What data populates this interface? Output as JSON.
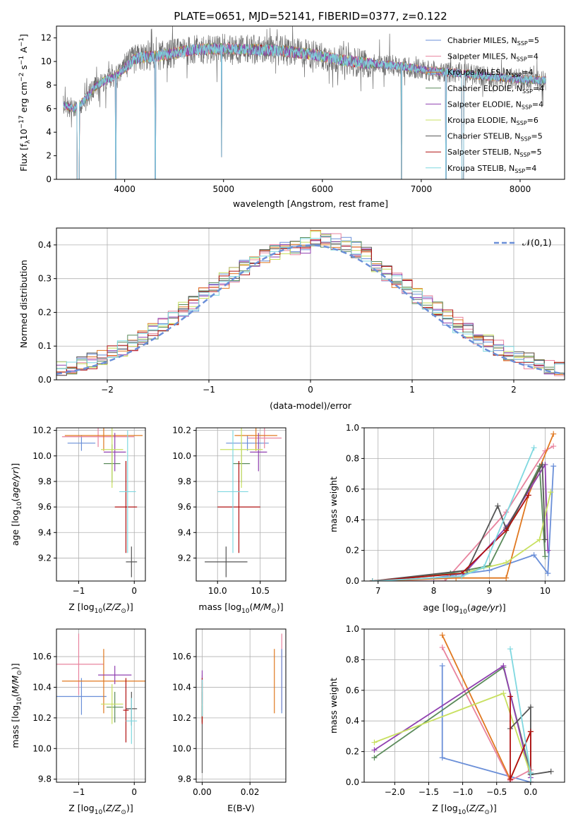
{
  "title": "PLATE=0651, MJD=52141, FIBERID=0377, z=0.122",
  "colors": [
    "#6a8fd8",
    "#e8839e",
    "#e07820",
    "#5a8a5a",
    "#9040b0",
    "#c8e060",
    "#555555",
    "#b01010",
    "#7fd8e0"
  ],
  "chart_data": [
    {
      "type": "line",
      "id": "spectrum",
      "title": "PLATE=0651, MJD=52141, FIBERID=0377, z=0.122",
      "xlabel": "wavelength [Angstrom, rest frame]",
      "ylabel": "Flux [f_λ10^-17 erg cm^-2 s^-1 A^-1]",
      "ylabel_parts": [
        "Flux [f",
        "λ",
        "10",
        "−17",
        " erg cm",
        "−2",
        " s",
        "−1",
        " A",
        "−1",
        "]"
      ],
      "xlim": [
        3310,
        8450
      ],
      "ylim": [
        0,
        13
      ],
      "xticks": [
        4000,
        5000,
        6000,
        7000,
        8000
      ],
      "yticks": [
        0,
        2,
        4,
        6,
        8,
        10,
        12
      ],
      "grid": false,
      "legend_position": "top-right",
      "legend": [
        {
          "text": "Chabrier MILES, N",
          "sub": "SSP",
          "suffix": "=5"
        },
        {
          "text": "Salpeter MILES, N",
          "sub": "SSP",
          "suffix": "=4"
        },
        {
          "text": "Kroupa MILES, N",
          "sub": "SSP",
          "suffix": "=4"
        },
        {
          "text": "Chabrier ELODIE, N",
          "sub": "SSP",
          "suffix": "=4"
        },
        {
          "text": "Salpeter ELODIE, N",
          "sub": "SSP",
          "suffix": "=4"
        },
        {
          "text": "Kroupa ELODIE, N",
          "sub": "SSP",
          "suffix": "=6"
        },
        {
          "text": "Chabrier STELIB, N",
          "sub": "SSP",
          "suffix": "=5"
        },
        {
          "text": "Salpeter STELIB, N",
          "sub": "SSP",
          "suffix": "=5"
        },
        {
          "text": "Kroupa STELIB, N",
          "sub": "SSP",
          "suffix": "=4"
        }
      ],
      "continuum": [
        [
          3380,
          6.3
        ],
        [
          3500,
          6.0
        ],
        [
          3600,
          6.8
        ],
        [
          3700,
          7.8
        ],
        [
          3800,
          8.4
        ],
        [
          3900,
          8.7
        ],
        [
          4000,
          9.4
        ],
        [
          4100,
          10.2
        ],
        [
          4200,
          10.4
        ],
        [
          4300,
          10.4
        ],
        [
          4500,
          10.7
        ],
        [
          4700,
          11.0
        ],
        [
          5000,
          11.1
        ],
        [
          5300,
          11.0
        ],
        [
          5600,
          10.9
        ],
        [
          5900,
          10.6
        ],
        [
          6200,
          10.1
        ],
        [
          6500,
          9.8
        ],
        [
          6800,
          9.6
        ],
        [
          7100,
          9.2
        ],
        [
          7400,
          9.0
        ],
        [
          7700,
          8.7
        ],
        [
          8000,
          8.5
        ],
        [
          8200,
          8.4
        ]
      ],
      "dips": [
        {
          "x": 3530,
          "y": 0.0,
          "w": 25
        },
        {
          "x": 3910,
          "y": 0.0,
          "w": 8
        },
        {
          "x": 4310,
          "y": 0.0,
          "w": 8
        },
        {
          "x": 4980,
          "y": 1.9,
          "w": 6
        },
        {
          "x": 6800,
          "y": 0.0,
          "w": 8
        },
        {
          "x": 7250,
          "y": 0.0,
          "w": 8
        },
        {
          "x": 7420,
          "y": 0.0,
          "w": 20
        }
      ]
    },
    {
      "type": "histogram",
      "id": "residuals",
      "xlabel": "(data-model)/error",
      "ylabel": "Normed distribution",
      "xlim": [
        -2.5,
        2.5
      ],
      "ylim": [
        0,
        0.45
      ],
      "xticks": [
        -2,
        -1,
        0,
        1,
        2
      ],
      "yticks": [
        0.0,
        0.1,
        0.2,
        0.3,
        0.4
      ],
      "grid": true,
      "bin_width": 0.1,
      "legend": [
        {
          "text": "𝒩(0,1)"
        }
      ],
      "legend_position": "top-right",
      "normal_curve": {
        "mu": 0,
        "sigma": 1
      }
    },
    {
      "type": "scatter",
      "id": "age-Z",
      "xlabel": "Z [log10(Z/Z⊙)]",
      "ylabel": "age [log10(age/yr)]",
      "xlim": [
        -1.4,
        0.2
      ],
      "ylim": [
        9.02,
        10.22
      ],
      "xticks": [
        -1,
        0
      ],
      "yticks": [
        9.2,
        9.4,
        9.6,
        9.8,
        10.0,
        10.2
      ],
      "grid": true,
      "points": [
        {
          "x": -0.95,
          "y": 10.1,
          "xerr": 0.25,
          "yerr": 0.06
        },
        {
          "x": -0.65,
          "y": 10.15,
          "xerr": 0.65,
          "yerr": 0.08
        },
        {
          "x": -0.55,
          "y": 10.16,
          "xerr": 0.7,
          "yerr": 0.12
        },
        {
          "x": -0.4,
          "y": 9.94,
          "xerr": 0.15,
          "yerr": 0.15
        },
        {
          "x": -0.35,
          "y": 10.03,
          "xerr": 0.2,
          "yerr": 0.15
        },
        {
          "x": -0.4,
          "y": 10.05,
          "xerr": 0.2,
          "yerr": 0.3
        },
        {
          "x": -0.05,
          "y": 9.17,
          "xerr": 0.1,
          "yerr": 0.12
        },
        {
          "x": -0.15,
          "y": 9.6,
          "xerr": 0.2,
          "yerr": 0.36
        },
        {
          "x": -0.12,
          "y": 9.72,
          "xerr": 0.15,
          "yerr": 0.48
        }
      ]
    },
    {
      "type": "scatter",
      "id": "age-mass",
      "xlabel": "mass [log10(M/M⊙)]",
      "ylabel": "",
      "xlim": [
        9.75,
        10.8
      ],
      "ylim": [
        9.02,
        10.22
      ],
      "xticks": [
        10.0,
        10.5
      ],
      "yticks": [
        9.2,
        9.4,
        9.6,
        9.8,
        10.0,
        10.2
      ],
      "grid": true,
      "points": [
        {
          "x": 10.35,
          "y": 10.1,
          "xerr": 0.25,
          "yerr": 0.06
        },
        {
          "x": 10.55,
          "y": 10.14,
          "xerr": 0.2,
          "yerr": 0.08
        },
        {
          "x": 10.45,
          "y": 10.16,
          "xerr": 0.25,
          "yerr": 0.12
        },
        {
          "x": 10.28,
          "y": 9.94,
          "xerr": 0.1,
          "yerr": 0.15
        },
        {
          "x": 10.48,
          "y": 10.03,
          "xerr": 0.1,
          "yerr": 0.15
        },
        {
          "x": 10.28,
          "y": 10.05,
          "xerr": 0.25,
          "yerr": 0.3
        },
        {
          "x": 10.1,
          "y": 9.17,
          "xerr": 0.25,
          "yerr": 0.12
        },
        {
          "x": 10.25,
          "y": 9.6,
          "xerr": 0.25,
          "yerr": 0.36
        },
        {
          "x": 10.18,
          "y": 9.72,
          "xerr": 0.18,
          "yerr": 0.48
        }
      ]
    },
    {
      "type": "line",
      "id": "weight-age",
      "xlabel": "age [log10(age/yr)]",
      "ylabel": "mass weight",
      "xlim": [
        6.75,
        10.35
      ],
      "ylim": [
        0,
        1
      ],
      "xticks": [
        7,
        8,
        9,
        10
      ],
      "yticks": [
        0.0,
        0.2,
        0.4,
        0.6,
        0.8,
        1.0
      ],
      "grid": true,
      "series": [
        {
          "x": [
            6.9,
            8.0,
            9.0,
            9.8,
            10.05,
            10.15
          ],
          "y": [
            0.0,
            0.02,
            0.07,
            0.17,
            0.05,
            0.75
          ]
        },
        {
          "x": [
            6.9,
            8.2,
            9.3,
            10.0,
            10.15
          ],
          "y": [
            0.0,
            0.0,
            0.45,
            0.85,
            0.88
          ]
        },
        {
          "x": [
            6.9,
            8.4,
            9.3,
            9.7,
            10.15
          ],
          "y": [
            0.0,
            0.02,
            0.02,
            0.56,
            0.96
          ]
        },
        {
          "x": [
            6.9,
            8.3,
            9.0,
            9.9,
            10.0
          ],
          "y": [
            0.0,
            0.05,
            0.1,
            0.75,
            0.16
          ]
        },
        {
          "x": [
            6.9,
            8.5,
            9.3,
            10.0,
            10.05
          ],
          "y": [
            0.0,
            0.03,
            0.35,
            0.76,
            0.2
          ]
        },
        {
          "x": [
            6.9,
            8.5,
            9.3,
            9.9,
            10.1
          ],
          "y": [
            0.0,
            0.05,
            0.12,
            0.27,
            0.58
          ]
        },
        {
          "x": [
            6.9,
            8.6,
            9.15,
            9.3,
            9.95,
            10.0
          ],
          "y": [
            0.0,
            0.07,
            0.49,
            0.34,
            0.76,
            0.27
          ]
        },
        {
          "x": [
            6.9,
            8.5,
            9.3,
            9.7
          ],
          "y": [
            0.0,
            0.05,
            0.33,
            0.56
          ]
        },
        {
          "x": [
            6.9,
            8.5,
            8.9,
            9.8
          ],
          "y": [
            0.0,
            0.03,
            0.09,
            0.87
          ]
        }
      ]
    },
    {
      "type": "scatter",
      "id": "mass-Z",
      "xlabel": "Z [log10(Z/Z⊙)]",
      "ylabel": "mass [log10(M/M⊙)]",
      "xlim": [
        -1.4,
        0.2
      ],
      "ylim": [
        9.78,
        10.78
      ],
      "xticks": [
        -1,
        0
      ],
      "yticks": [
        9.8,
        10.0,
        10.2,
        10.4,
        10.6
      ],
      "grid": true,
      "points": [
        {
          "x": -0.95,
          "y": 10.34,
          "xerr": 0.45,
          "yerr": 0.12
        },
        {
          "x": -1.0,
          "y": 10.55,
          "xerr": 0.45,
          "yerr": 0.2
        },
        {
          "x": -0.55,
          "y": 10.44,
          "xerr": 0.75,
          "yerr": 0.21
        },
        {
          "x": -0.35,
          "y": 10.27,
          "xerr": 0.15,
          "yerr": 0.1
        },
        {
          "x": -0.35,
          "y": 10.48,
          "xerr": 0.3,
          "yerr": 0.06
        },
        {
          "x": -0.4,
          "y": 10.29,
          "xerr": 0.2,
          "yerr": 0.13
        },
        {
          "x": -0.05,
          "y": 10.26,
          "xerr": 0.1,
          "yerr": 0.11
        },
        {
          "x": -0.15,
          "y": 10.25,
          "xerr": 0.05,
          "yerr": 0.21
        },
        {
          "x": -0.05,
          "y": 10.18,
          "xerr": 0.1,
          "yerr": 0.15
        }
      ]
    },
    {
      "type": "scatter",
      "id": "mass-ebv",
      "xlabel": "E(B-V)",
      "ylabel": "",
      "xlim": [
        -0.0025,
        0.035
      ],
      "ylim": [
        9.78,
        10.78
      ],
      "xticks": [
        0.0,
        0.02
      ],
      "yticks": [
        9.8,
        10.0,
        10.2,
        10.4,
        10.6
      ],
      "grid": true,
      "points": [
        {
          "x": 0.0,
          "y": 10.34,
          "xerr": 0.0,
          "yerr": 0.12
        },
        {
          "x": 0.0,
          "y": 10.38,
          "xerr": 0.0,
          "yerr": 0.1
        },
        {
          "x": 0.0,
          "y": 10.3,
          "xerr": 0.0,
          "yerr": 0.13
        },
        {
          "x": 0.0,
          "y": 10.27,
          "xerr": 0.0,
          "yerr": 0.1
        },
        {
          "x": 0.0,
          "y": 10.4,
          "xerr": 0.0,
          "yerr": 0.11
        },
        {
          "x": 0.0,
          "y": 10.31,
          "xerr": 0.0,
          "yerr": 0.13
        },
        {
          "x": 0.0,
          "y": 10.06,
          "xerr": 0.0,
          "yerr": 0.22
        },
        {
          "x": 0.0,
          "y": 10.31,
          "xerr": 0.0,
          "yerr": 0.15
        },
        {
          "x": 0.0,
          "y": 10.33,
          "xerr": 0.0,
          "yerr": 0.12
        }
      ],
      "extra_points": [
        {
          "x": 0.0333,
          "y": 10.5,
          "xerr": 0.0,
          "yerr": 0.25,
          "color": "#e8839e"
        },
        {
          "x": 0.0333,
          "y": 10.44,
          "xerr": 0.0,
          "yerr": 0.21,
          "color": "#6a8fd8"
        },
        {
          "x": 0.0302,
          "y": 10.44,
          "xerr": 0.0,
          "yerr": 0.21,
          "color": "#e07820"
        }
      ]
    },
    {
      "type": "line",
      "id": "weight-Z",
      "xlabel": "Z [log10(Z/Z⊙)]",
      "ylabel": "mass weight",
      "xlim": [
        -2.45,
        0.5
      ],
      "ylim": [
        0,
        1
      ],
      "xticks": [
        -2.0,
        -1.5,
        -1.0,
        -0.5,
        0.0
      ],
      "yticks": [
        0.0,
        0.2,
        0.4,
        0.6,
        0.8,
        1.0
      ],
      "grid": true,
      "series": [
        {
          "x": [
            -1.3,
            -1.3,
            0.0,
            0.0
          ],
          "y": [
            0.76,
            0.16,
            0.0,
            0.06
          ]
        },
        {
          "x": [
            -1.3,
            -0.3,
            0.0
          ],
          "y": [
            0.88,
            0.01,
            0.08
          ]
        },
        {
          "x": [
            -1.3,
            -0.3,
            0.0
          ],
          "y": [
            0.96,
            0.02,
            0.33
          ]
        },
        {
          "x": [
            -2.3,
            -0.4,
            0.0,
            0.0
          ],
          "y": [
            0.16,
            0.75,
            0.06,
            0.0
          ]
        },
        {
          "x": [
            -2.3,
            -0.4,
            0.0,
            0.0
          ],
          "y": [
            0.21,
            0.76,
            0.03,
            0.0
          ]
        },
        {
          "x": [
            -2.3,
            -0.4,
            0.0
          ],
          "y": [
            0.26,
            0.58,
            0.05
          ]
        },
        {
          "x": [
            -0.3,
            0.0,
            0.0,
            0.3
          ],
          "y": [
            0.35,
            0.49,
            0.05,
            0.07
          ]
        },
        {
          "x": [
            -0.3,
            -0.3,
            0.0,
            0.0
          ],
          "y": [
            0.56,
            0.02,
            0.33,
            0.0
          ]
        },
        {
          "x": [
            -0.3,
            0.0,
            0.0
          ],
          "y": [
            0.87,
            0.06,
            0.0
          ]
        }
      ]
    }
  ]
}
